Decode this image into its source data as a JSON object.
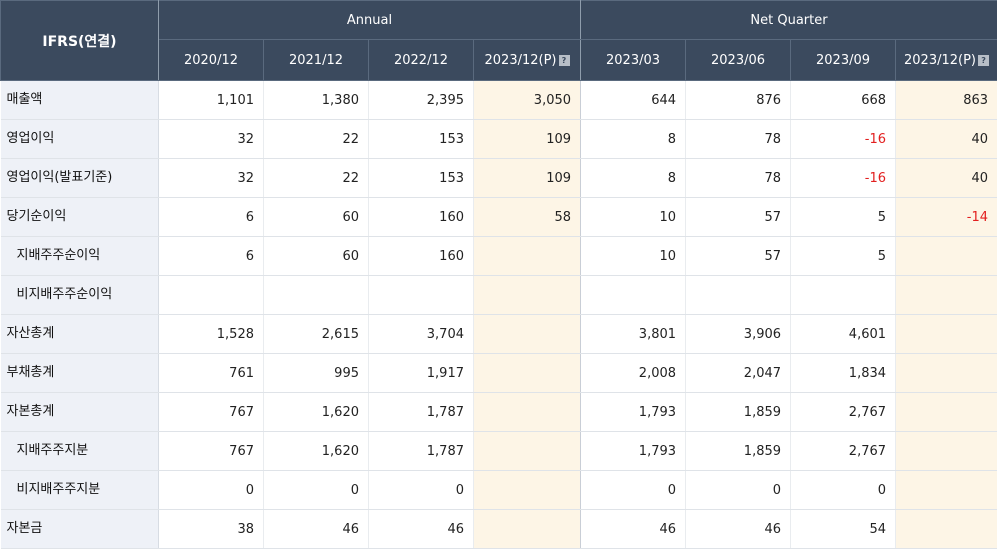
{
  "header": {
    "corner": "IFRS(연결)",
    "annual": "Annual",
    "quarter": "Net Quarter",
    "annual_cols": [
      "2020/12",
      "2021/12",
      "2022/12",
      "2023/12(P)"
    ],
    "quarter_cols": [
      "2023/03",
      "2023/06",
      "2023/09",
      "2023/12(P)"
    ],
    "info_icon": "question-mark-icon"
  },
  "rows": [
    {
      "label": "매출액",
      "cells": [
        "1,101",
        "1,380",
        "2,395",
        "3,050",
        "644",
        "876",
        "668",
        "863"
      ]
    },
    {
      "label": "영업이익",
      "cells": [
        "32",
        "22",
        "153",
        "109",
        "8",
        "78",
        "-16",
        "40"
      ]
    },
    {
      "label": "영업이익(발표기준)",
      "cells": [
        "32",
        "22",
        "153",
        "109",
        "8",
        "78",
        "-16",
        "40"
      ]
    },
    {
      "label": "당기순이익",
      "cells": [
        "6",
        "60",
        "160",
        "58",
        "10",
        "57",
        "5",
        "-14"
      ]
    },
    {
      "label": "지배주주순이익",
      "cells": [
        "6",
        "60",
        "160",
        "",
        "10",
        "57",
        "5",
        ""
      ]
    },
    {
      "label": "비지배주주순이익",
      "cells": [
        "",
        "",
        "",
        "",
        "",
        "",
        "",
        ""
      ]
    },
    {
      "label": "자산총계",
      "cells": [
        "1,528",
        "2,615",
        "3,704",
        "",
        "3,801",
        "3,906",
        "4,601",
        ""
      ]
    },
    {
      "label": "부채총계",
      "cells": [
        "761",
        "995",
        "1,917",
        "",
        "2,008",
        "2,047",
        "1,834",
        ""
      ]
    },
    {
      "label": "자본총계",
      "cells": [
        "767",
        "1,620",
        "1,787",
        "",
        "1,793",
        "1,859",
        "2,767",
        ""
      ]
    },
    {
      "label": "지배주주지분",
      "cells": [
        "767",
        "1,620",
        "1,787",
        "",
        "1,793",
        "1,859",
        "2,767",
        ""
      ]
    },
    {
      "label": "비지배주주지분",
      "cells": [
        "0",
        "0",
        "0",
        "",
        "0",
        "0",
        "0",
        ""
      ]
    },
    {
      "label": "자본금",
      "cells": [
        "38",
        "46",
        "46",
        "",
        "46",
        "46",
        "54",
        ""
      ]
    }
  ],
  "colors": {
    "header_bg": "#3b4a5e",
    "label_bg": "#eef1f7",
    "estimate_bg": "#fdf5e6",
    "negative": "#e21f1f"
  }
}
